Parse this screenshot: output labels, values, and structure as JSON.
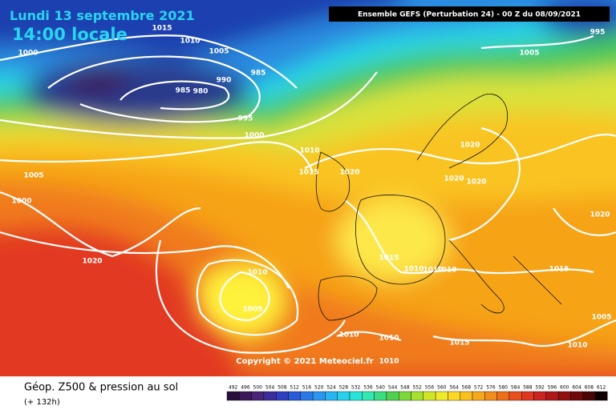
{
  "header": {
    "date": "Lundi 13 septembre 2021",
    "time": "14:00 locale",
    "model": "Ensemble GEFS  (Perturbation 24)  -  00 Z du 08/09/2021"
  },
  "isobar_labels": [
    "1015",
    "1010",
    "1000",
    "1005",
    "990",
    "985",
    "985",
    "980",
    "995",
    "1000",
    "1005",
    "995",
    "1010",
    "1015",
    "1020",
    "1020",
    "1005",
    "1000",
    "1020",
    "1020",
    "1020",
    "1020",
    "1010",
    "1015",
    "1010",
    "1010",
    "1010",
    "1015",
    "1005",
    "1005",
    "1010",
    "1010",
    "1015",
    "1010",
    "1010"
  ],
  "copyright": "Copyright © 2021 Meteociel.fr",
  "footer": {
    "title": "Géop. Z500 & pression au sol",
    "lead": "(+ 132h)"
  },
  "scale": [
    492,
    496,
    500,
    504,
    508,
    512,
    516,
    520,
    524,
    528,
    532,
    536,
    540,
    544,
    548,
    552,
    556,
    560,
    564,
    568,
    572,
    576,
    580,
    584,
    588,
    592,
    596,
    600,
    604,
    608,
    612
  ]
}
